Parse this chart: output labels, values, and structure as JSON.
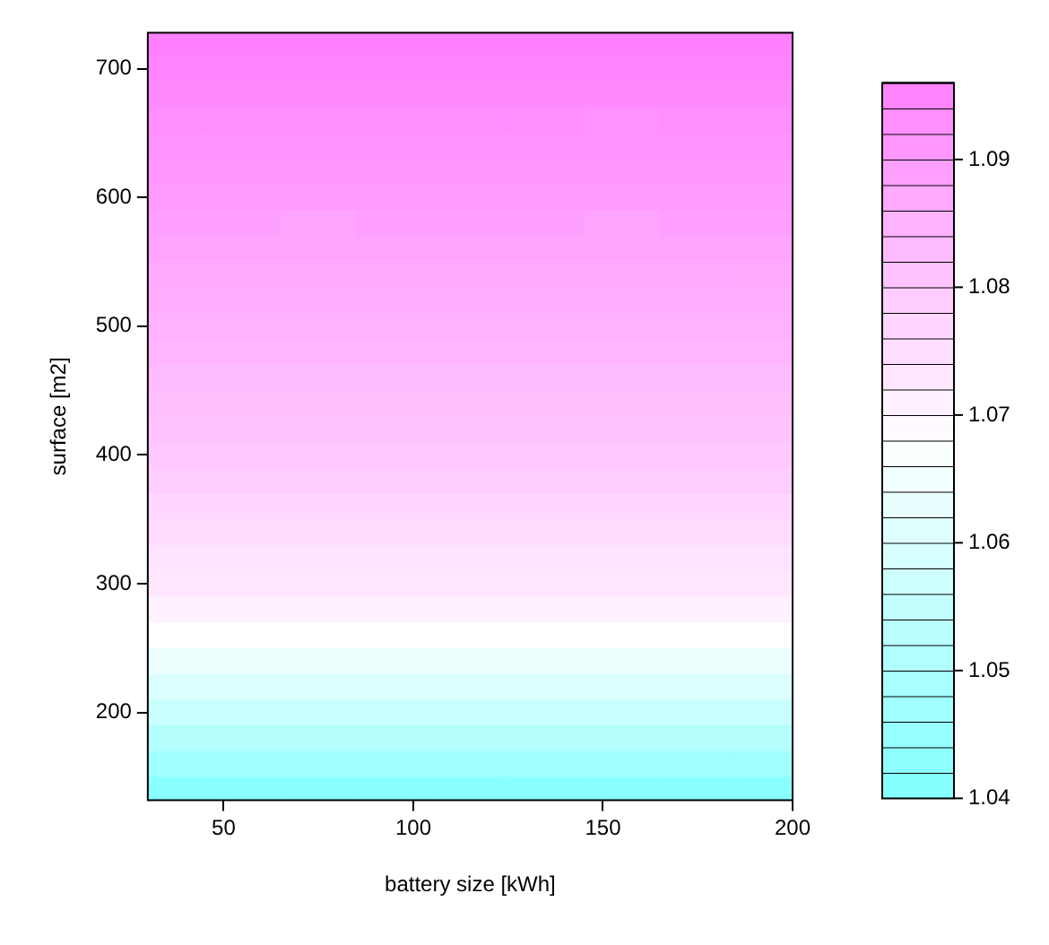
{
  "chart_data": {
    "type": "heatmap",
    "xlabel": "battery size [kWh]",
    "ylabel": "surface [m2]",
    "x": [
      35,
      55,
      75,
      95,
      115,
      135,
      155,
      175,
      195
    ],
    "y": [
      720,
      700,
      680,
      660,
      640,
      620,
      600,
      580,
      560,
      540,
      520,
      500,
      480,
      460,
      440,
      420,
      400,
      380,
      360,
      340,
      320,
      300,
      280,
      260,
      240,
      220,
      200,
      180,
      160,
      140
    ],
    "cells": [
      [
        1.096,
        1.096,
        1.096,
        1.096,
        1.096,
        1.096,
        1.096,
        1.096,
        1.096
      ],
      [
        1.095,
        1.095,
        1.095,
        1.095,
        1.095,
        1.095,
        1.095,
        1.095,
        1.095
      ],
      [
        1.094,
        1.094,
        1.094,
        1.094,
        1.094,
        1.094,
        1.094,
        1.094,
        1.094
      ],
      [
        1.093,
        1.093,
        1.093,
        1.093,
        1.093,
        1.093,
        1.092,
        1.093,
        1.093
      ],
      [
        1.092,
        1.092,
        1.092,
        1.092,
        1.092,
        1.092,
        1.092,
        1.092,
        1.092
      ],
      [
        1.091,
        1.091,
        1.091,
        1.091,
        1.091,
        1.091,
        1.091,
        1.091,
        1.091
      ],
      [
        1.09,
        1.09,
        1.09,
        1.09,
        1.09,
        1.09,
        1.09,
        1.09,
        1.09
      ],
      [
        1.089,
        1.089,
        1.088,
        1.089,
        1.089,
        1.089,
        1.088,
        1.089,
        1.089
      ],
      [
        1.088,
        1.088,
        1.088,
        1.088,
        1.088,
        1.088,
        1.088,
        1.088,
        1.088
      ],
      [
        1.087,
        1.087,
        1.087,
        1.087,
        1.087,
        1.087,
        1.087,
        1.087,
        1.087
      ],
      [
        1.086,
        1.086,
        1.086,
        1.086,
        1.086,
        1.086,
        1.086,
        1.086,
        1.086
      ],
      [
        1.085,
        1.085,
        1.085,
        1.085,
        1.085,
        1.085,
        1.085,
        1.085,
        1.085
      ],
      [
        1.084,
        1.084,
        1.084,
        1.084,
        1.084,
        1.084,
        1.084,
        1.084,
        1.084
      ],
      [
        1.083,
        1.083,
        1.083,
        1.083,
        1.083,
        1.083,
        1.083,
        1.083,
        1.083
      ],
      [
        1.082,
        1.082,
        1.082,
        1.082,
        1.082,
        1.082,
        1.082,
        1.082,
        1.082
      ],
      [
        1.081,
        1.081,
        1.081,
        1.081,
        1.081,
        1.081,
        1.081,
        1.081,
        1.081
      ],
      [
        1.08,
        1.08,
        1.08,
        1.08,
        1.08,
        1.08,
        1.08,
        1.08,
        1.08
      ],
      [
        1.079,
        1.079,
        1.079,
        1.079,
        1.079,
        1.079,
        1.079,
        1.079,
        1.079
      ],
      [
        1.077,
        1.077,
        1.077,
        1.077,
        1.077,
        1.077,
        1.077,
        1.077,
        1.077
      ],
      [
        1.076,
        1.076,
        1.076,
        1.076,
        1.076,
        1.076,
        1.076,
        1.076,
        1.076
      ],
      [
        1.074,
        1.074,
        1.074,
        1.074,
        1.074,
        1.074,
        1.074,
        1.074,
        1.074
      ],
      [
        1.073,
        1.073,
        1.073,
        1.073,
        1.073,
        1.073,
        1.073,
        1.073,
        1.073
      ],
      [
        1.071,
        1.071,
        1.071,
        1.071,
        1.071,
        1.071,
        1.071,
        1.071,
        1.071
      ],
      [
        1.068,
        1.068,
        1.068,
        1.068,
        1.068,
        1.068,
        1.068,
        1.068,
        1.068
      ],
      [
        1.064,
        1.064,
        1.064,
        1.064,
        1.064,
        1.064,
        1.064,
        1.064,
        1.064
      ],
      [
        1.06,
        1.06,
        1.06,
        1.06,
        1.06,
        1.06,
        1.06,
        1.06,
        1.06
      ],
      [
        1.056,
        1.056,
        1.056,
        1.056,
        1.056,
        1.056,
        1.056,
        1.056,
        1.056
      ],
      [
        1.052,
        1.052,
        1.052,
        1.052,
        1.052,
        1.052,
        1.052,
        1.052,
        1.052
      ],
      [
        1.047,
        1.047,
        1.047,
        1.047,
        1.047,
        1.047,
        1.047,
        1.047,
        1.047
      ],
      [
        1.042,
        1.042,
        1.042,
        1.042,
        1.042,
        1.042,
        1.042,
        1.042,
        1.042
      ]
    ],
    "xlim": [
      30,
      200
    ],
    "xticks": [
      50,
      100,
      150,
      200
    ],
    "ylim": [
      132,
      728
    ],
    "yticks": [
      200,
      300,
      400,
      500,
      600,
      700
    ],
    "clim": [
      1.04,
      1.096
    ],
    "cticks": [
      1.04,
      1.05,
      1.06,
      1.07,
      1.08,
      1.09
    ]
  }
}
